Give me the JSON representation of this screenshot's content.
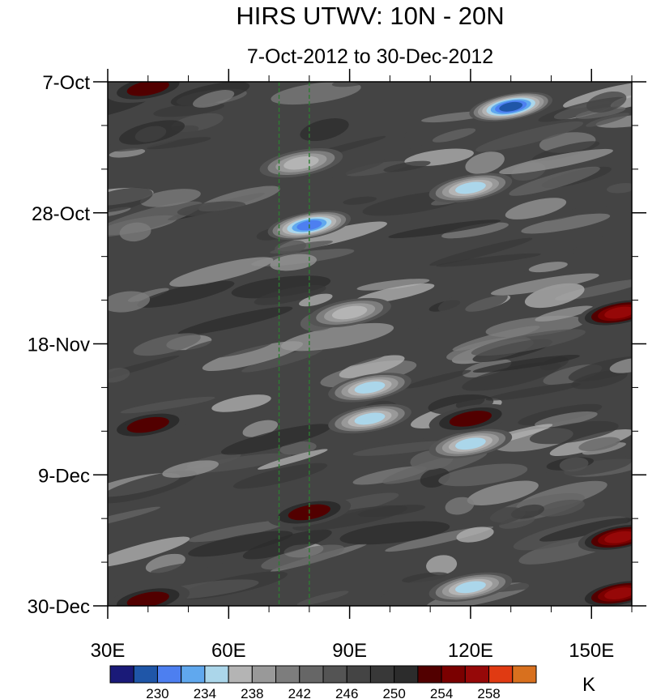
{
  "chart_data": {
    "type": "heatmap",
    "title": "HIRS UTWV: 10N - 20N",
    "subtitle": "7-Oct-2012 to 30-Dec-2012",
    "x_axis": {
      "range": [
        30,
        160
      ],
      "major_ticks": [
        30,
        60,
        90,
        120,
        150
      ],
      "tick_labels": [
        "30E",
        "60E",
        "90E",
        "120E",
        "150E"
      ],
      "minor_step": 10
    },
    "y_axis": {
      "range": [
        "2012-10-07",
        "2012-12-30"
      ],
      "major_ticks": [
        "2012-10-07",
        "2012-10-28",
        "2012-11-18",
        "2012-12-09",
        "2012-12-30"
      ],
      "tick_labels": [
        "7-Oct",
        "28-Oct",
        "18-Nov",
        "9-Dec",
        "30-Dec"
      ],
      "minor_step_days": 7,
      "direction": "top-to-bottom"
    },
    "reference_lines": [
      {
        "orientation": "vertical",
        "x": 72.5,
        "style": "dashed",
        "color": "#2e7d32"
      },
      {
        "orientation": "vertical",
        "x": 80,
        "style": "dashed",
        "color": "#2e7d32"
      }
    ],
    "colorbar": {
      "unit": "K",
      "levels": [
        228,
        230,
        232,
        234,
        236,
        238,
        240,
        242,
        244,
        246,
        248,
        250,
        252,
        254,
        256,
        258
      ],
      "tick_labels": [
        "230",
        "234",
        "238",
        "242",
        "246",
        "250",
        "254",
        "258"
      ],
      "tick_values": [
        230,
        234,
        238,
        242,
        246,
        250,
        254,
        258
      ],
      "colors": [
        "#1a1a78",
        "#1f56a8",
        "#4d7ff0",
        "#60a8ee",
        "#abd6ea",
        "#b4b4b4",
        "#999999",
        "#7d7d7d",
        "#666666",
        "#545454",
        "#444444",
        "#383838",
        "#2c2c2c",
        "#520000",
        "#7a0000",
        "#960808",
        "#e03a12",
        "#d8701e"
      ]
    },
    "features": [
      {
        "lon": 130,
        "date": "2012-10-11",
        "value": 228
      },
      {
        "lon": 120,
        "date": "2012-10-24",
        "value": 234
      },
      {
        "lon": 80,
        "date": "2012-10-30",
        "value": 230
      },
      {
        "lon": 78,
        "date": "2012-10-20",
        "value": 236
      },
      {
        "lon": 90,
        "date": "2012-11-13",
        "value": 236
      },
      {
        "lon": 95,
        "date": "2012-11-25",
        "value": 234
      },
      {
        "lon": 95,
        "date": "2012-11-30",
        "value": 234
      },
      {
        "lon": 120,
        "date": "2012-12-04",
        "value": 234
      },
      {
        "lon": 120,
        "date": "2012-12-27",
        "value": 234
      },
      {
        "lon": 40,
        "date": "2012-10-08",
        "value": 254
      },
      {
        "lon": 157,
        "date": "2012-11-13",
        "value": 258
      },
      {
        "lon": 157,
        "date": "2012-12-19",
        "value": 258
      },
      {
        "lon": 157,
        "date": "2012-12-28",
        "value": 258
      },
      {
        "lon": 120,
        "date": "2012-11-30",
        "value": 254
      },
      {
        "lon": 40,
        "date": "2012-12-01",
        "value": 254
      },
      {
        "lon": 80,
        "date": "2012-12-15",
        "value": 254
      },
      {
        "lon": 40,
        "date": "2012-12-29",
        "value": 254
      }
    ]
  }
}
